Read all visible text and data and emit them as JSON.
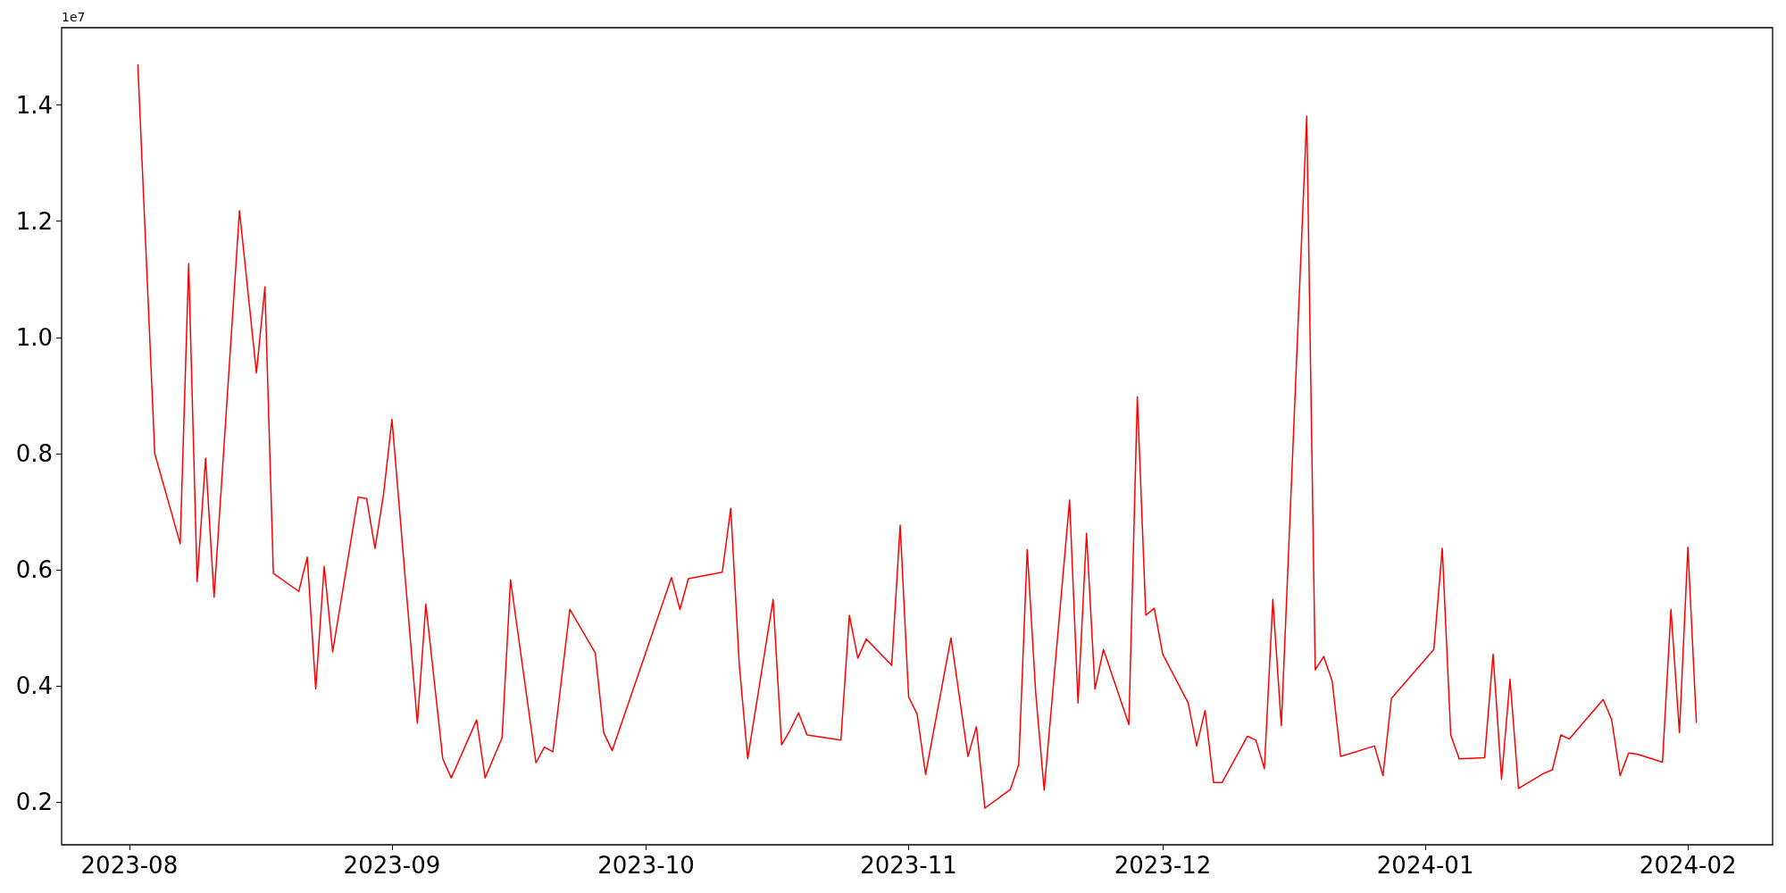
{
  "chart_data": {
    "type": "line",
    "annotations": [
      "1e7"
    ],
    "grid": false,
    "marker": "none",
    "line_style": "solid",
    "xlim": [
      "2023-07-24",
      "2024-02-11"
    ],
    "xticks": [
      {
        "value": "2023-08-01",
        "label": "2023-08"
      },
      {
        "value": "2023-09-01",
        "label": "2023-09"
      },
      {
        "value": "2023-10-01",
        "label": "2023-10"
      },
      {
        "value": "2023-11-01",
        "label": "2023-11"
      },
      {
        "value": "2023-12-01",
        "label": "2023-12"
      },
      {
        "value": "2024-01-01",
        "label": "2024-01"
      },
      {
        "value": "2024-02-01",
        "label": "2024-02"
      }
    ],
    "ylim": [
      0.127,
      1.533
    ],
    "yticks": [
      0.2,
      0.4,
      0.6,
      0.8,
      {
        "value": 1,
        "label": "1.0"
      },
      1.2,
      1.4
    ],
    "x": [
      "2023-08-02",
      "2023-08-04",
      "2023-08-07",
      "2023-08-08",
      "2023-08-09",
      "2023-08-10",
      "2023-08-11",
      "2023-08-14",
      "2023-08-16",
      "2023-08-17",
      "2023-08-18",
      "2023-08-21",
      "2023-08-22",
      "2023-08-23",
      "2023-08-24",
      "2023-08-25",
      "2023-08-28",
      "2023-08-29",
      "2023-08-30",
      "2023-08-31",
      "2023-09-01",
      "2023-09-04",
      "2023-09-05",
      "2023-09-07",
      "2023-09-08",
      "2023-09-11",
      "2023-09-12",
      "2023-09-14",
      "2023-09-15",
      "2023-09-18",
      "2023-09-19",
      "2023-09-20",
      "2023-09-22",
      "2023-09-25",
      "2023-09-26",
      "2023-09-27",
      "2023-10-04",
      "2023-10-05",
      "2023-10-06",
      "2023-10-10",
      "2023-10-11",
      "2023-10-12",
      "2023-10-13",
      "2023-10-16",
      "2023-10-17",
      "2023-10-18",
      "2023-10-19",
      "2023-10-20",
      "2023-10-24",
      "2023-10-25",
      "2023-10-26",
      "2023-10-27",
      "2023-10-30",
      "2023-10-31",
      "2023-11-01",
      "2023-11-02",
      "2023-11-03",
      "2023-11-06",
      "2023-11-08",
      "2023-11-09",
      "2023-11-10",
      "2023-11-13",
      "2023-11-14",
      "2023-11-15",
      "2023-11-16",
      "2023-11-17",
      "2023-11-20",
      "2023-11-21",
      "2023-11-22",
      "2023-11-23",
      "2023-11-24",
      "2023-11-27",
      "2023-11-28",
      "2023-11-29",
      "2023-11-30",
      "2023-12-01",
      "2023-12-04",
      "2023-12-05",
      "2023-12-06",
      "2023-12-07",
      "2023-12-08",
      "2023-12-11",
      "2023-12-12",
      "2023-12-13",
      "2023-12-14",
      "2023-12-15",
      "2023-12-18",
      "2023-12-19",
      "2023-12-20",
      "2023-12-21",
      "2023-12-22",
      "2023-12-26",
      "2023-12-27",
      "2023-12-28",
      "2024-01-02",
      "2024-01-03",
      "2024-01-04",
      "2024-01-05",
      "2024-01-08",
      "2024-01-09",
      "2024-01-10",
      "2024-01-11",
      "2024-01-12",
      "2024-01-15",
      "2024-01-16",
      "2024-01-17",
      "2024-01-18",
      "2024-01-22",
      "2024-01-23",
      "2024-01-24",
      "2024-01-25",
      "2024-01-26",
      "2024-01-29",
      "2024-01-30",
      "2024-01-31",
      "2024-02-01",
      "2024-02-02"
    ],
    "series": [
      {
        "color": "#ff0000",
        "values": [
          1.469,
          0.8,
          0.645,
          1.127,
          0.58,
          0.792,
          0.553,
          1.218,
          0.939,
          1.087,
          0.594,
          0.563,
          0.622,
          0.395,
          0.606,
          0.459,
          0.725,
          0.723,
          0.637,
          0.729,
          0.859,
          0.336,
          0.541,
          0.275,
          0.242,
          0.342,
          0.242,
          0.311,
          0.583,
          0.268,
          0.295,
          0.287,
          0.532,
          0.457,
          0.32,
          0.289,
          0.587,
          0.532,
          0.585,
          0.596,
          0.706,
          0.438,
          0.275,
          0.549,
          0.299,
          0.324,
          0.354,
          0.316,
          0.307,
          0.522,
          0.448,
          0.481,
          0.436,
          0.677,
          0.381,
          0.352,
          0.248,
          0.483,
          0.279,
          0.33,
          0.19,
          0.222,
          0.265,
          0.635,
          0.389,
          0.221,
          0.72,
          0.371,
          0.663,
          0.395,
          0.463,
          0.334,
          0.898,
          0.522,
          0.534,
          0.455,
          0.371,
          0.297,
          0.358,
          0.234,
          0.234,
          0.314,
          0.307,
          0.258,
          0.549,
          0.332,
          1.381,
          0.428,
          0.451,
          0.409,
          0.279,
          0.297,
          0.246,
          0.379,
          0.463,
          0.637,
          0.316,
          0.275,
          0.277,
          0.455,
          0.24,
          0.412,
          0.224,
          0.25,
          0.256,
          0.316,
          0.309,
          0.377,
          0.342,
          0.246,
          0.285,
          0.283,
          0.269,
          0.532,
          0.32,
          0.639,
          0.338
        ]
      }
    ]
  }
}
